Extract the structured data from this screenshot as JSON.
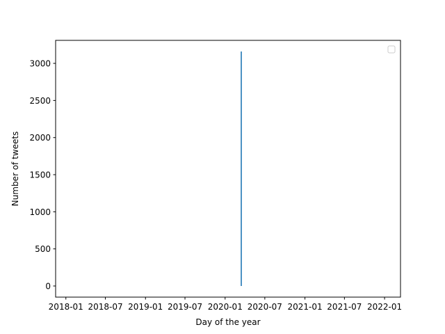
{
  "chart_data": {
    "type": "line",
    "title": "",
    "xlabel": "Day of the year",
    "ylabel": "Number of tweets",
    "x_axis_type": "date",
    "xlim": [
      "2017-11-15",
      "2022-03-15"
    ],
    "ylim": [
      -150,
      3310
    ],
    "x_ticks": [
      "2018-01",
      "2018-07",
      "2019-01",
      "2019-07",
      "2020-01",
      "2020-07",
      "2021-01",
      "2021-07",
      "2022-01"
    ],
    "y_ticks": [
      0,
      500,
      1000,
      1500,
      2000,
      2500,
      3000
    ],
    "series": [
      {
        "name": "",
        "color": "#1f77b4",
        "points": [
          {
            "x": "2020-03-15",
            "y": 0
          },
          {
            "x": "2020-03-15",
            "y": 3160
          }
        ]
      }
    ],
    "legend": {
      "placement": "upper-right",
      "entries": []
    },
    "grid": false
  }
}
